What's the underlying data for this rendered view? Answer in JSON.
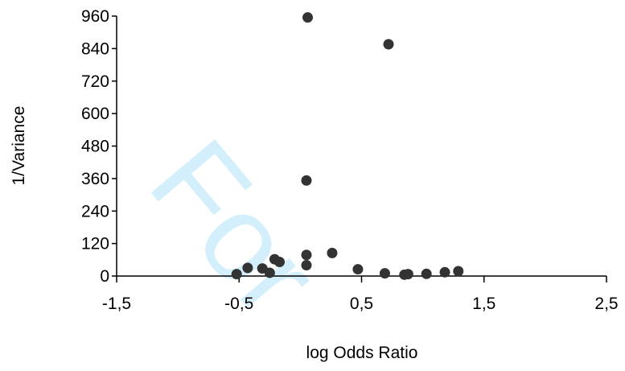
{
  "chart_data": {
    "type": "scatter",
    "title": "",
    "xlabel": "log Odds Ratio",
    "ylabel": "1/Variance",
    "xlim": [
      -1.5,
      2.5
    ],
    "ylim": [
      0,
      960
    ],
    "x_ticks": [
      "-1,5",
      "-0,5",
      "0,5",
      "1,5",
      "2,5"
    ],
    "x_tick_values": [
      -1.5,
      -0.5,
      0.5,
      1.5,
      2.5
    ],
    "y_ticks": [
      "0",
      "120",
      "240",
      "360",
      "480",
      "600",
      "720",
      "840",
      "960"
    ],
    "y_tick_values": [
      0,
      120,
      240,
      360,
      480,
      600,
      720,
      840,
      960
    ],
    "grid": false,
    "legend": "none",
    "marker_color": "#333333",
    "points": [
      {
        "x": 0.06,
        "y": 955
      },
      {
        "x": 0.72,
        "y": 856
      },
      {
        "x": 0.05,
        "y": 353
      },
      {
        "x": -0.52,
        "y": 7
      },
      {
        "x": -0.43,
        "y": 30
      },
      {
        "x": -0.31,
        "y": 28
      },
      {
        "x": -0.25,
        "y": 12
      },
      {
        "x": -0.21,
        "y": 62
      },
      {
        "x": -0.17,
        "y": 52
      },
      {
        "x": 0.05,
        "y": 78
      },
      {
        "x": 0.05,
        "y": 40
      },
      {
        "x": 0.26,
        "y": 85
      },
      {
        "x": 0.47,
        "y": 25
      },
      {
        "x": 0.69,
        "y": 10
      },
      {
        "x": 0.85,
        "y": 5
      },
      {
        "x": 0.88,
        "y": 7
      },
      {
        "x": 1.03,
        "y": 8
      },
      {
        "x": 1.18,
        "y": 14
      },
      {
        "x": 1.29,
        "y": 18
      }
    ]
  },
  "watermark": {
    "text": "For"
  }
}
